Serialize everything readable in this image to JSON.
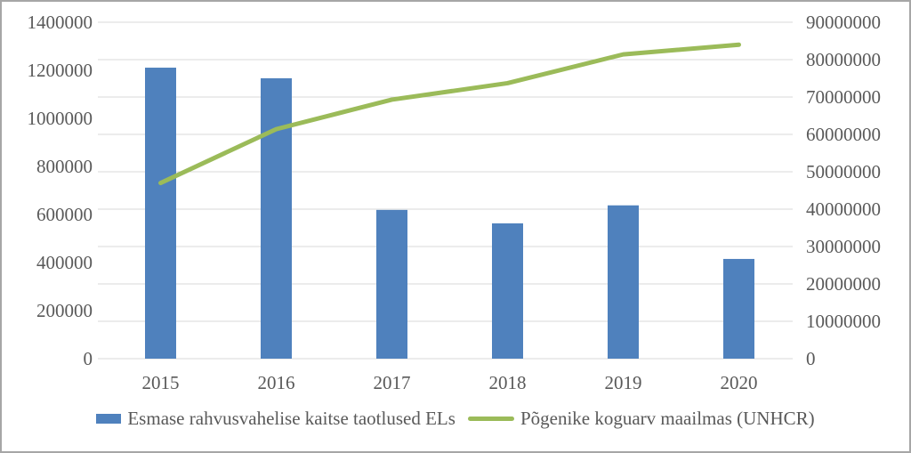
{
  "chart_data": {
    "type": "combo",
    "title": "",
    "categories": [
      "2015",
      "2016",
      "2017",
      "2018",
      "2019",
      "2020"
    ],
    "series": [
      {
        "name": "Esmase rahvusvahelise kaitse taotlused ELs",
        "type": "bar",
        "axis": "left",
        "color": "#4f81bd",
        "values": [
          1211000,
          1167000,
          619000,
          563000,
          638000,
          415000
        ]
      },
      {
        "name": "Põgenike koguarv maailmas (UNHCR)",
        "type": "line",
        "axis": "right",
        "color": "#9bbb59",
        "values": [
          47000000,
          61400000,
          69300000,
          73700000,
          81400000,
          84000000
        ]
      }
    ],
    "left_axis": {
      "min": 0,
      "max": 1400000,
      "step": 200000,
      "tick_labels": [
        "0",
        "200000",
        "400000",
        "600000",
        "800000",
        "1000000",
        "1200000",
        "1400000"
      ]
    },
    "right_axis": {
      "min": 0,
      "max": 90000000,
      "step": 10000000,
      "tick_labels": [
        "0",
        "10000000",
        "20000000",
        "30000000",
        "40000000",
        "50000000",
        "60000000",
        "70000000",
        "80000000",
        "90000000"
      ]
    },
    "grid": true,
    "legend_position": "bottom",
    "colors": {
      "grid_line": "#d9d9d9",
      "axis_text": "#595959",
      "background": "#ffffff",
      "border": "#a6a6a6"
    }
  }
}
